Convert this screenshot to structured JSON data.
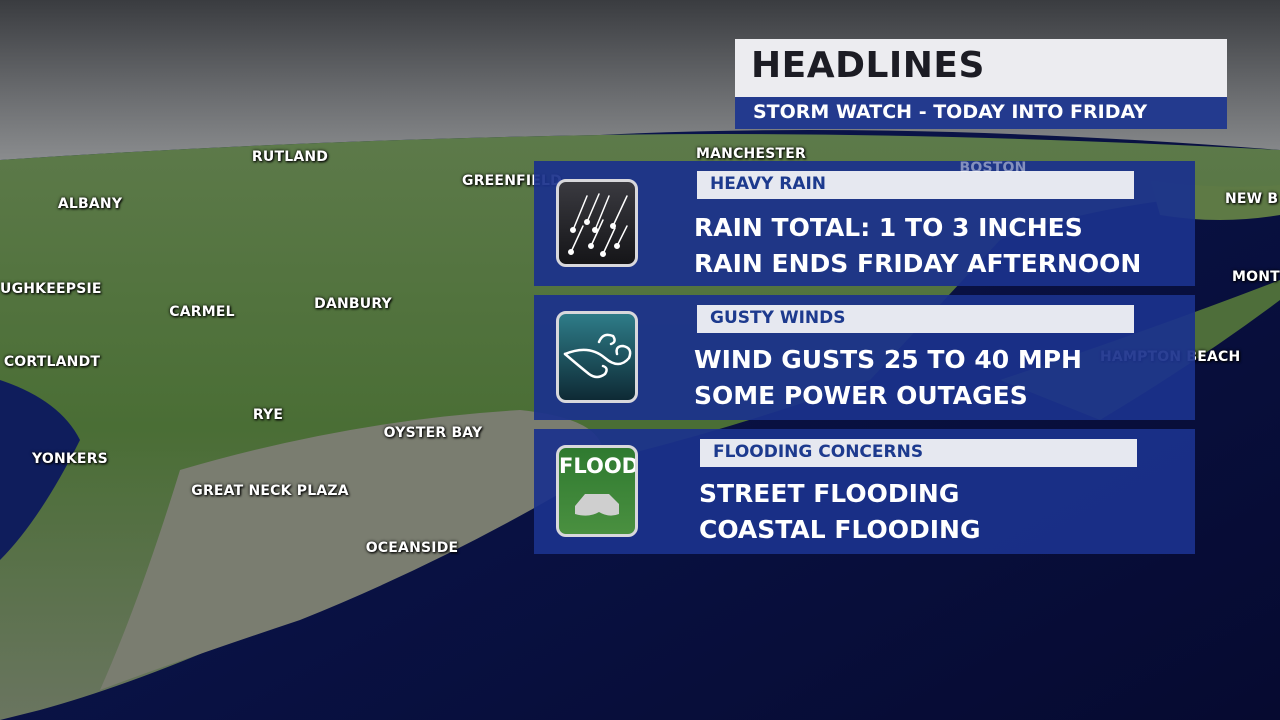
{
  "header": {
    "title": "HEADLINES",
    "subtitle": "STORM WATCH - TODAY INTO FRIDAY"
  },
  "panels": [
    {
      "icon": "heavy-rain-icon",
      "tag": "HEAVY RAIN",
      "lines": [
        "RAIN TOTAL: 1 TO 3 INCHES",
        "RAIN ENDS FRIDAY AFTERNOON"
      ]
    },
    {
      "icon": "wind-icon",
      "tag": "GUSTY WINDS",
      "lines": [
        "WIND GUSTS 25 TO 40 MPH",
        "SOME POWER OUTAGES"
      ]
    },
    {
      "icon": "flood-icon",
      "icon_text": "FLOOD",
      "tag": "FLOODING CONCERNS",
      "lines": [
        "STREET FLOODING",
        "COASTAL FLOODING"
      ]
    }
  ],
  "map_labels": [
    "RUTLAND",
    "MANCHESTER",
    "GREENFIELD",
    "ALBANY",
    "UGHKEEPSIE",
    "CARMEL",
    "DANBURY",
    "CORTLANDT",
    "RYE",
    "YONKERS",
    "OYSTER BAY",
    "GREAT NECK PLAZA",
    "OCEANSIDE",
    "NEW B",
    "MONT",
    "HAMPTON BEACH",
    "BOSTON"
  ],
  "colors": {
    "panel": "#1b328c",
    "header_bar": "#233a8e",
    "tag_text": "#1d3a8e"
  }
}
